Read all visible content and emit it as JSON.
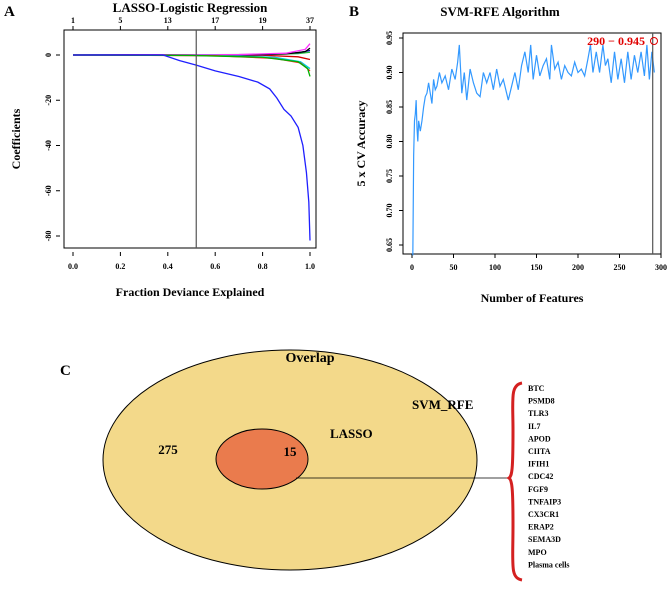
{
  "chart_data": [
    {
      "panel": "A",
      "type": "line",
      "title": "LASSO-Logistic Regression",
      "xlabel": "Fraction Deviance Explained",
      "ylabel": "Coefficients",
      "xlim": [
        0,
        1
      ],
      "ylim": [
        -84,
        8
      ],
      "xticks": [
        "0.0",
        "0.2",
        "0.4",
        "0.6",
        "0.8",
        "1.0"
      ],
      "yticks": [
        "0",
        "-20",
        "-40",
        "-60",
        "-80"
      ],
      "top_ticks": {
        "positions": [
          0,
          0.2,
          0.4,
          0.6,
          0.8,
          1.0
        ],
        "labels": [
          "1",
          "5",
          "13",
          "17",
          "19",
          "37"
        ]
      },
      "vline_x": 0.52,
      "series": [
        {
          "name": "blue",
          "color": "#1f1fff",
          "x": [
            0,
            0.38,
            0.45,
            0.52,
            0.6,
            0.7,
            0.78,
            0.83,
            0.86,
            0.89,
            0.92,
            0.95,
            0.97,
            0.985,
            0.995,
            1.0
          ],
          "y": [
            0,
            0,
            -2.5,
            -4.5,
            -7,
            -9.5,
            -12,
            -15,
            -19,
            -24,
            -27,
            -32,
            -40,
            -52,
            -65,
            -82
          ]
        },
        {
          "name": "green",
          "color": "#00b000",
          "x": [
            0,
            0.5,
            0.8,
            0.95,
            0.99,
            1.0
          ],
          "y": [
            0,
            -0.2,
            -1,
            -3,
            -6,
            -9.5
          ]
        },
        {
          "name": "red",
          "color": "#ff2020",
          "x": [
            0,
            0.6,
            0.85,
            0.96,
            1.0
          ],
          "y": [
            0,
            -0.3,
            -1.5,
            -3.5,
            -7
          ]
        },
        {
          "name": "cyan",
          "color": "#00d0e0",
          "x": [
            0,
            0.6,
            0.85,
            0.96,
            1.0
          ],
          "y": [
            0,
            -0.2,
            -1,
            -3,
            -6
          ]
        },
        {
          "name": "magenta",
          "color": "#ff30ff",
          "x": [
            0,
            0.7,
            0.9,
            0.98,
            1.0
          ],
          "y": [
            0,
            0.2,
            0.8,
            2.5,
            5
          ]
        },
        {
          "name": "black",
          "color": "#000000",
          "x": [
            0,
            0.7,
            0.9,
            0.98,
            1.0
          ],
          "y": [
            0,
            0.1,
            0.5,
            1.5,
            3
          ]
        },
        {
          "name": "navy",
          "color": "#0000a0",
          "x": [
            0,
            0.8,
            0.95,
            1.0
          ],
          "y": [
            0,
            0.1,
            1,
            2
          ]
        },
        {
          "name": "red2",
          "color": "#d00000",
          "x": [
            0,
            0.8,
            0.95,
            1.0
          ],
          "y": [
            0,
            -0.1,
            -0.8,
            -2
          ]
        },
        {
          "name": "green2",
          "color": "#20c040",
          "x": [
            0,
            0.8,
            0.95,
            1.0
          ],
          "y": [
            0,
            0.2,
            0.6,
            1.2
          ]
        }
      ]
    },
    {
      "panel": "B",
      "type": "line",
      "title": "SVM-RFE Algorithm",
      "xlabel": "Number of Features",
      "ylabel": "5 x CV Accuracy",
      "xlim": [
        -8,
        305
      ],
      "ylim": [
        0.635,
        0.955
      ],
      "xticks": [
        "0",
        "50",
        "100",
        "150",
        "200",
        "250",
        "300"
      ],
      "yticks": [
        "0.65",
        "0.70",
        "0.75",
        "0.80",
        "0.85",
        "0.90",
        "0.95"
      ],
      "annotation": "290 − 0.945",
      "best": {
        "features": 290,
        "accuracy": 0.945
      },
      "vline_x": 290,
      "color": "#3399ff",
      "x": [
        1,
        2,
        3,
        4,
        5,
        6,
        7,
        8,
        10,
        12,
        14,
        16,
        18,
        20,
        22,
        24,
        26,
        28,
        30,
        33,
        36,
        40,
        44,
        48,
        52,
        55,
        57,
        60,
        63,
        66,
        70,
        74,
        78,
        82,
        86,
        90,
        94,
        98,
        102,
        106,
        110,
        114,
        116,
        120,
        124,
        128,
        132,
        136,
        140,
        143,
        146,
        150,
        154,
        158,
        162,
        166,
        168,
        172,
        176,
        180,
        184,
        188,
        192,
        196,
        200,
        204,
        208,
        212,
        215,
        218,
        222,
        226,
        230,
        233,
        236,
        240,
        244,
        248,
        252,
        256,
        260,
        264,
        268,
        272,
        276,
        280,
        283,
        286,
        289,
        292
      ],
      "y": [
        0.635,
        0.78,
        0.83,
        0.84,
        0.86,
        0.82,
        0.8,
        0.83,
        0.815,
        0.83,
        0.85,
        0.865,
        0.87,
        0.885,
        0.87,
        0.855,
        0.89,
        0.875,
        0.88,
        0.9,
        0.885,
        0.895,
        0.875,
        0.905,
        0.89,
        0.915,
        0.94,
        0.87,
        0.9,
        0.86,
        0.905,
        0.885,
        0.87,
        0.865,
        0.9,
        0.885,
        0.9,
        0.875,
        0.905,
        0.88,
        0.89,
        0.87,
        0.86,
        0.88,
        0.9,
        0.875,
        0.91,
        0.93,
        0.9,
        0.94,
        0.89,
        0.925,
        0.895,
        0.91,
        0.92,
        0.89,
        0.94,
        0.905,
        0.915,
        0.89,
        0.91,
        0.9,
        0.895,
        0.915,
        0.9,
        0.905,
        0.895,
        0.92,
        0.94,
        0.9,
        0.93,
        0.9,
        0.94,
        0.91,
        0.92,
        0.885,
        0.93,
        0.89,
        0.92,
        0.885,
        0.93,
        0.89,
        0.925,
        0.9,
        0.93,
        0.895,
        0.94,
        0.89,
        0.93,
        0.9
      ]
    },
    {
      "panel": "C",
      "type": "venn",
      "title": "Overlap",
      "sets": [
        {
          "name": "SVM_RFE",
          "only": 275
        },
        {
          "name": "LASSO",
          "overlap": 15
        }
      ],
      "colors": {
        "outer": "#f3d98a",
        "inner": "#ea7b4d",
        "brace": "#d42020"
      },
      "genes": [
        "BTC",
        "PSMD8",
        "TLR3",
        "IL7",
        "APOD",
        "CIITA",
        "IFIH1",
        "CDC42",
        "FGF9",
        "TNFAIP3",
        "CX3CR1",
        "ERAP2",
        "SEMA3D",
        "MPO",
        "Plasma cells"
      ]
    }
  ],
  "panel_labels": [
    "A",
    "B",
    "C"
  ]
}
